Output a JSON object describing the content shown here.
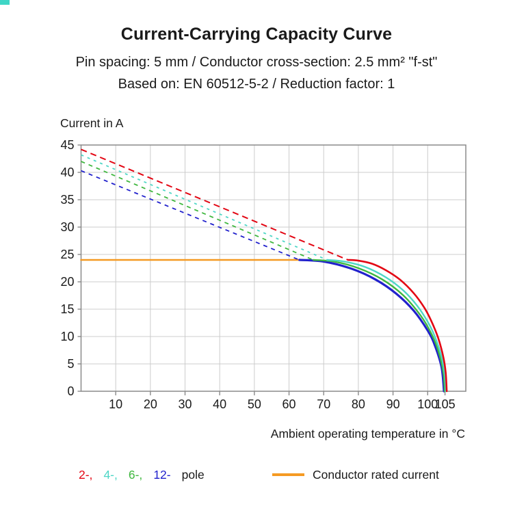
{
  "header": {
    "title": "Current-Carrying Capacity Curve",
    "subtitle1": "Pin spacing: 5 mm / Conductor cross-section: 2.5 mm² \"f-st\"",
    "subtitle2": "Based on: EN 60512-5-2 / Reduction factor: 1"
  },
  "chart_data": {
    "type": "line",
    "title": "Current-Carrying Capacity Curve",
    "ylabel": "Current in A",
    "xlabel": "Ambient operating temperature in °C",
    "xlim": [
      0,
      111
    ],
    "ylim": [
      0,
      45
    ],
    "x_ticks": [
      10,
      20,
      30,
      40,
      50,
      60,
      70,
      80,
      90,
      100,
      105
    ],
    "y_ticks": [
      0,
      5,
      10,
      15,
      20,
      25,
      30,
      35,
      40,
      45
    ],
    "grid": true,
    "grid_color": "#cccccc",
    "border_color": "#8a8a8a",
    "text_color": "#1a1a1a",
    "series": [
      {
        "name": "rated",
        "label": "Conductor rated current",
        "color": "#f59a23",
        "width": 2.6,
        "solid_points": [
          [
            0,
            24
          ],
          [
            63.5,
            24
          ]
        ]
      },
      {
        "name": "12-pole",
        "color": "#2121cc",
        "width": 3.2,
        "dash": "6 6",
        "dash_width": 1.8,
        "dashed_points": [
          [
            0,
            40.3
          ],
          [
            63,
            24
          ]
        ],
        "solid_points": [
          [
            63,
            24
          ],
          [
            70,
            23.7
          ],
          [
            78,
            22.4
          ],
          [
            85,
            20.4
          ],
          [
            91,
            17.8
          ],
          [
            96,
            14.7
          ],
          [
            100,
            11.1
          ],
          [
            102,
            8.5
          ],
          [
            104,
            4.4
          ],
          [
            104.7,
            0
          ]
        ]
      },
      {
        "name": "6-pole",
        "color": "#3fb73f",
        "width": 2.4,
        "dash": "6 6",
        "dash_width": 1.8,
        "dashed_points": [
          [
            0,
            42.0
          ],
          [
            67,
            24
          ]
        ],
        "solid_points": [
          [
            67,
            24
          ],
          [
            73,
            23.7
          ],
          [
            80,
            22.5
          ],
          [
            87,
            20.4
          ],
          [
            93,
            17.5
          ],
          [
            98,
            13.8
          ],
          [
            101,
            10.6
          ],
          [
            103,
            7.5
          ],
          [
            104.5,
            3.5
          ],
          [
            104.9,
            0
          ]
        ]
      },
      {
        "name": "4-pole",
        "color": "#4ed6c6",
        "width": 2.4,
        "dash": "4 6",
        "dash_width": 1.8,
        "dashed_points": [
          [
            0,
            43.2
          ],
          [
            71,
            24
          ]
        ],
        "solid_points": [
          [
            71,
            24
          ],
          [
            76,
            23.7
          ],
          [
            82,
            22.7
          ],
          [
            88,
            20.8
          ],
          [
            93,
            18.4
          ],
          [
            97,
            15.6
          ],
          [
            100,
            12.7
          ],
          [
            102,
            10.1
          ],
          [
            104,
            6.3
          ],
          [
            105,
            2.6
          ],
          [
            105.2,
            0
          ]
        ]
      },
      {
        "name": "2-pole",
        "color": "#e30613",
        "width": 2.6,
        "dash": "9 6",
        "dash_width": 2,
        "dashed_points": [
          [
            0,
            44.2
          ],
          [
            77,
            24
          ]
        ],
        "solid_points": [
          [
            77,
            24
          ],
          [
            80,
            23.87
          ],
          [
            84,
            23.3
          ],
          [
            88,
            22.1
          ],
          [
            92,
            20.4
          ],
          [
            96,
            17.9
          ],
          [
            99,
            15.3
          ],
          [
            101,
            12.9
          ],
          [
            103,
            9.8
          ],
          [
            104.5,
            6.3
          ],
          [
            105.2,
            3.4
          ],
          [
            105.5,
            0
          ]
        ]
      }
    ]
  },
  "legend": {
    "poles": [
      {
        "name": "2-pole",
        "label": "2-,",
        "color": "#e30613"
      },
      {
        "name": "4-pole",
        "label": "4-,",
        "color": "#4ed6c6"
      },
      {
        "name": "6-pole",
        "label": "6-,",
        "color": "#3fb73f"
      },
      {
        "name": "12-pole",
        "label": "12-",
        "color": "#2121cc"
      }
    ],
    "pole_suffix": "pole",
    "rated_label": "Conductor rated current",
    "rated_color": "#f59a23"
  }
}
